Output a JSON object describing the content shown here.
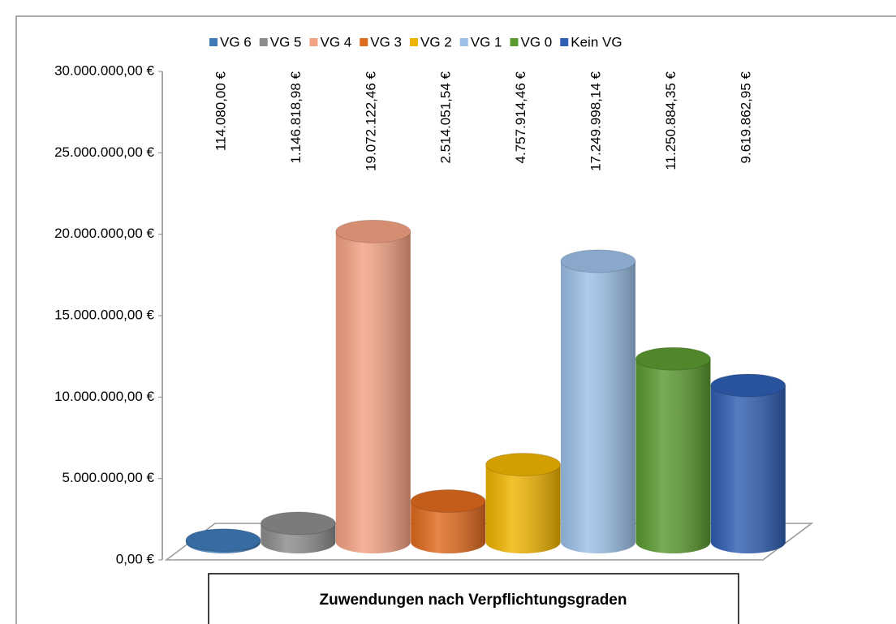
{
  "chart_data": {
    "type": "bar3d",
    "xlabel": "Zuwendungen nach Verpflichtungsgraden",
    "categories": [
      "VG 6",
      "VG 5",
      "VG 4",
      "VG 3",
      "VG 2",
      "VG 1",
      "VG 0",
      "Kein VG"
    ],
    "values": [
      114080.0,
      1146818.98,
      19072122.46,
      2514051.54,
      4757914.46,
      17249998.14,
      11250884.35,
      9619862.95
    ],
    "value_labels": [
      "114.080,00 €",
      "1.146.818,98 €",
      "19.072.122,46 €",
      "2.514.051,54 €",
      "4.757.914,46 €",
      "17.249.998,14 €",
      "11.250.884,35 €",
      "9.619.862,95 €"
    ],
    "colors": [
      "#3f7ab8",
      "#8c8c8c",
      "#f4a283",
      "#e06a1e",
      "#f0b400",
      "#9cc0e8",
      "#5a9a30",
      "#2f5fb3"
    ],
    "ylim": [
      0,
      30000000
    ],
    "yticks": [
      {
        "value": 0,
        "label": "0,00 €"
      },
      {
        "value": 5000000,
        "label": "5.000.000,00 €"
      },
      {
        "value": 10000000,
        "label": "10.000.000,00 €"
      },
      {
        "value": 15000000,
        "label": "15.000.000,00 €"
      },
      {
        "value": 20000000,
        "label": "20.000.000,00 €"
      },
      {
        "value": 25000000,
        "label": "25.000.000,00 €"
      },
      {
        "value": 30000000,
        "label": "30.000.000,00 €"
      }
    ],
    "legend": "top"
  }
}
